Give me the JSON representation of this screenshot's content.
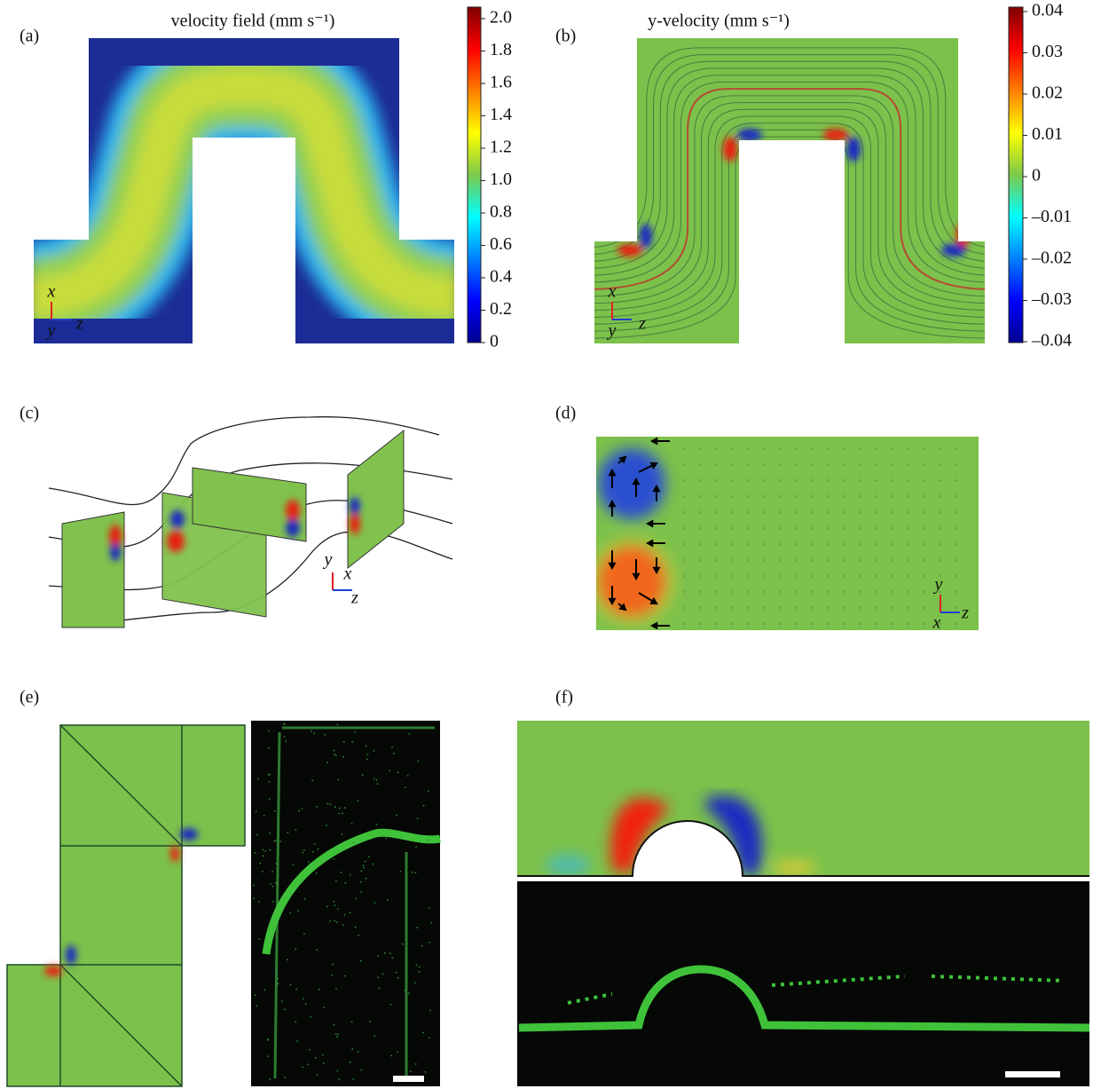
{
  "panels": [
    {
      "label": "(a)",
      "title": "velocity field (mm s⁻¹)",
      "colorbar_ticks": [
        "2.0",
        "1.8",
        "1.6",
        "1.4",
        "1.2",
        "1.0",
        "0.8",
        "0.6",
        "0.4",
        "0.2",
        "0"
      ],
      "axes": [
        "x",
        "y",
        "z"
      ]
    },
    {
      "label": "(b)",
      "title": "y-velocity (mm s⁻¹)",
      "colorbar_ticks": [
        "0.04",
        "0.03",
        "0.02",
        "0.01",
        "0",
        "–0.01",
        "–0.02",
        "–0.03",
        "–0.04"
      ],
      "axes": [
        "x",
        "y",
        "z"
      ]
    },
    {
      "label": "(c)",
      "axes": [
        "y",
        "x",
        "z"
      ]
    },
    {
      "label": "(d)",
      "axes": [
        "y",
        "x",
        "z"
      ]
    },
    {
      "label": "(e)"
    },
    {
      "label": "(f)"
    }
  ]
}
